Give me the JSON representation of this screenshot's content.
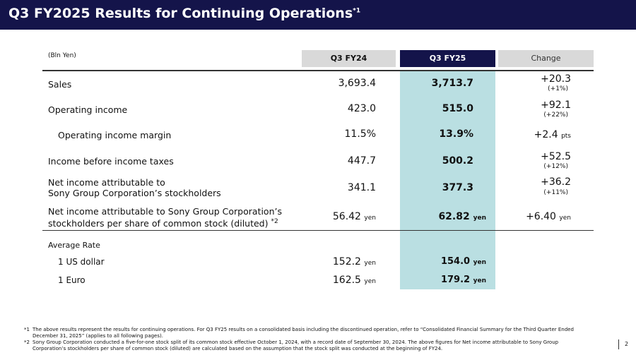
{
  "title": "Q3 FY2025 Results for Continuing Operations",
  "title_note": "*1",
  "unit": "(Bln Yen)",
  "columns": [
    "Q3 FY24",
    "Q3 FY25",
    "Change"
  ],
  "rows": [
    {
      "label": "Sales",
      "fy24": "3,693.4",
      "fy25": "3,713.7",
      "change": "+20.3",
      "pct": "(+1%)"
    },
    {
      "label": "Operating income",
      "fy24": "423.0",
      "fy25": "515.0",
      "change": "+92.1",
      "pct": "(+22%)"
    },
    {
      "label": "Operating income margin",
      "fy24": "11.5%",
      "fy25": "13.9%",
      "change": "+2.4",
      "change_unit": "pts"
    },
    {
      "label": "Income before income taxes",
      "fy24": "447.7",
      "fy25": "500.2",
      "change": "+52.5",
      "pct": "(+12%)"
    },
    {
      "label1": "Net income attributable to",
      "label2": "Sony Group Corporation’s stockholders",
      "fy24": "341.1",
      "fy25": "377.3",
      "change": "+36.2",
      "pct": "(+11%)"
    },
    {
      "label1": "Net income attributable to Sony Group Corporation’s",
      "label2": "stockholders per share of common stock (diluted)",
      "note": "*2",
      "fy24": "56.42",
      "fy25": "62.82",
      "change": "+6.40",
      "unit": "yen"
    }
  ],
  "avg_rate": {
    "label": "Average Rate",
    "rows": [
      {
        "label": "1 US dollar",
        "fy24": "152.2",
        "fy25": "154.0",
        "unit": "yen"
      },
      {
        "label": "1 Euro",
        "fy24": "162.5",
        "fy25": "179.2",
        "unit": "yen"
      }
    ]
  },
  "footnotes": [
    {
      "mark": "*1",
      "text": "The above results represent the results for continuing operations. For Q3 FY25 results on a consolidated basis including the discontinued operation, refer to “Consolidated Financial Summary for the Third Quarter Ended December 31, 2025” (applies to all following pages)."
    },
    {
      "mark": "*2",
      "text": "Sony Group Corporation conducted a five-for-one stock split of its common stock effective October 1, 2024, with a record date of September 30, 2024. The above figures for Net income attributable to Sony Group Corporation’s stockholders per share of common stock (diluted) are calculated based on the assumption that the stock split was conducted at the beginning of FY24."
    }
  ],
  "page": "2"
}
